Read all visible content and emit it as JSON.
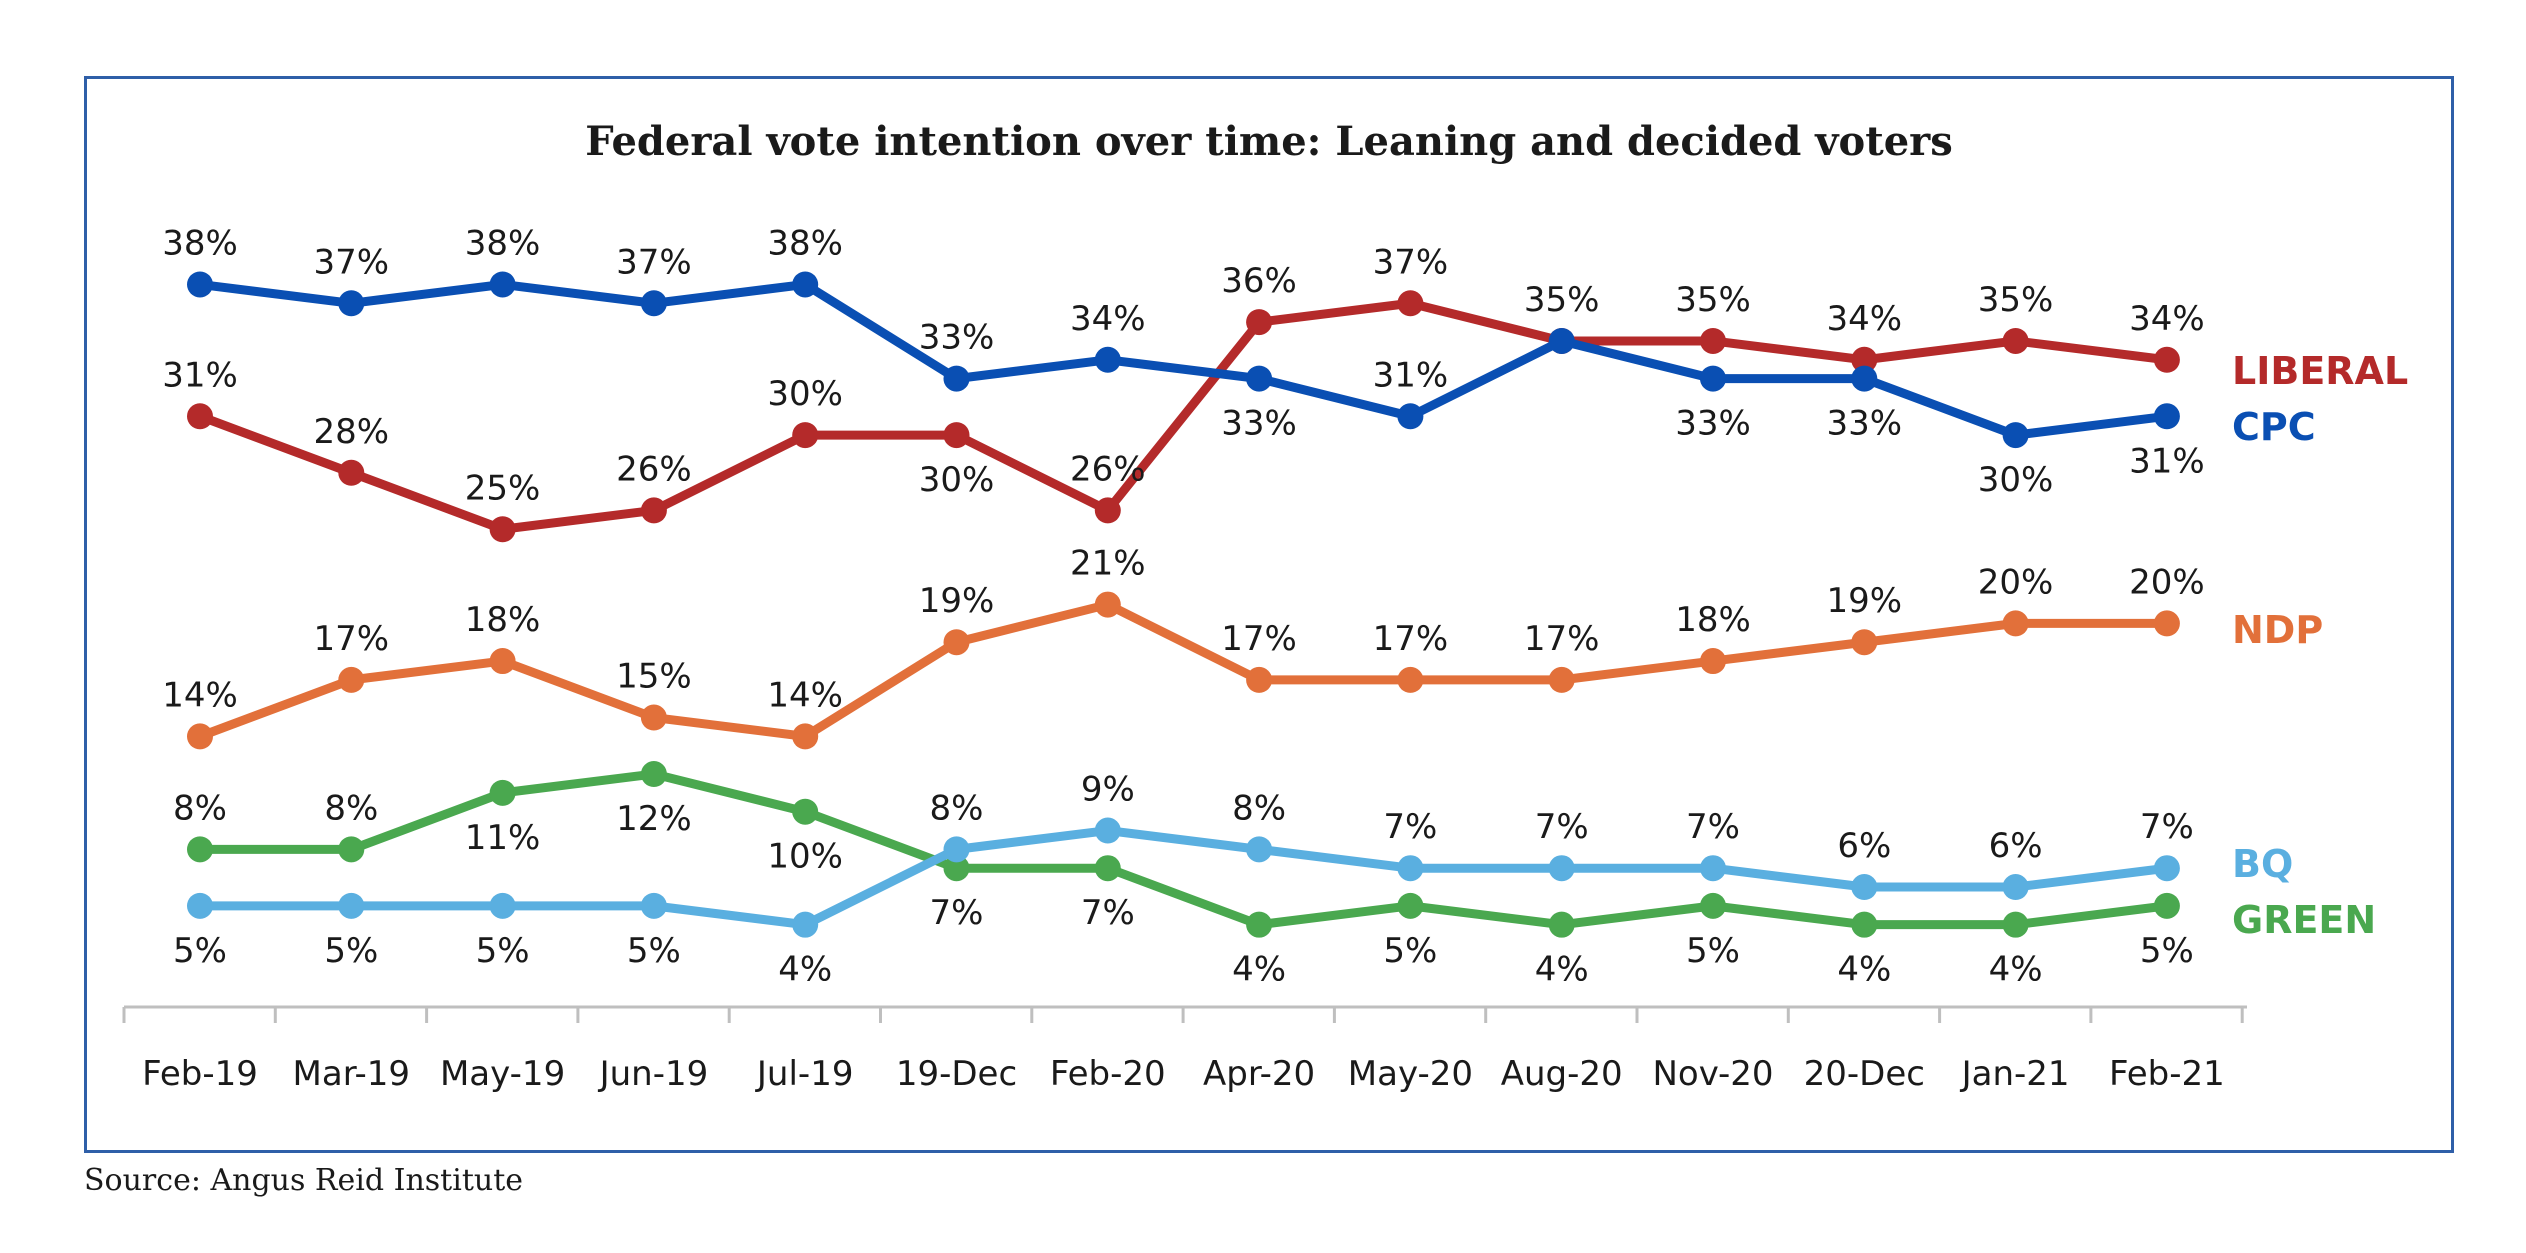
{
  "title": "Federal vote intention over time: Leaning and decided voters",
  "source": "Source: Angus Reid Institute",
  "chart_data": {
    "type": "line",
    "title": "Federal vote intention over time: Leaning and decided voters",
    "xlabel": "",
    "ylabel": "",
    "categories": [
      "Feb-19",
      "Mar-19",
      "May-19",
      "Jun-19",
      "Jul-19",
      "19-Dec",
      "Feb-20",
      "Apr-20",
      "May-20",
      "Aug-20",
      "Nov-20",
      "20-Dec",
      "Jan-21",
      "Feb-21"
    ],
    "ylim": [
      0,
      40
    ],
    "grid": false,
    "legend": "right (labels at line ends)",
    "series": [
      {
        "name": "CPC",
        "color": "#0a4fb3",
        "values": [
          38,
          37,
          38,
          37,
          38,
          33,
          34,
          33,
          31,
          35,
          33,
          33,
          30,
          31
        ],
        "labels": [
          "38%",
          "37%",
          "38%",
          "37%",
          "38%",
          "33%",
          "34%",
          "33%",
          "31%",
          "35%",
          "33%",
          "33%",
          "30%",
          "31%"
        ],
        "label_pos": [
          "above",
          "above",
          "above",
          "above",
          "above",
          "above",
          "above",
          "below",
          "above",
          "above",
          "below",
          "below",
          "below",
          "below"
        ]
      },
      {
        "name": "LIBERAL",
        "color": "#b42a2a",
        "values": [
          31,
          28,
          25,
          26,
          30,
          30,
          26,
          36,
          37,
          35,
          35,
          34,
          35,
          34
        ],
        "labels": [
          "31%",
          "28%",
          "25%",
          "26%",
          "30%",
          "30%",
          "26%",
          "36%",
          "37%",
          "35%",
          "35%",
          "34%",
          "35%",
          "34%"
        ],
        "label_pos": [
          "above",
          "above",
          "above",
          "above",
          "above",
          "below",
          "above",
          "above",
          "above",
          "none",
          "above",
          "above",
          "above",
          "above"
        ]
      },
      {
        "name": "NDP",
        "color": "#e2703a",
        "values": [
          14,
          17,
          18,
          15,
          14,
          19,
          21,
          17,
          17,
          17,
          18,
          19,
          20,
          20
        ],
        "labels": [
          "14%",
          "17%",
          "18%",
          "15%",
          "14%",
          "19%",
          "21%",
          "17%",
          "17%",
          "17%",
          "18%",
          "19%",
          "20%",
          "20%"
        ],
        "label_pos": [
          "above",
          "above",
          "above",
          "above",
          "above",
          "above",
          "above",
          "above",
          "above",
          "above",
          "above",
          "above",
          "above",
          "above"
        ]
      },
      {
        "name": "GREEN",
        "color": "#4aa84f",
        "values": [
          8,
          8,
          11,
          12,
          10,
          7,
          7,
          4,
          5,
          4,
          5,
          4,
          4,
          5
        ],
        "labels": [
          "8%",
          "8%",
          "11%",
          "12%",
          "10%",
          "7%",
          "7%",
          "4%",
          "5%",
          "4%",
          "5%",
          "4%",
          "4%",
          "5%"
        ],
        "label_pos": [
          "above",
          "above",
          "below",
          "below",
          "below",
          "below",
          "below",
          "below",
          "below",
          "below",
          "below",
          "below",
          "below",
          "below"
        ]
      },
      {
        "name": "BQ",
        "color": "#5aafe0",
        "values": [
          5,
          5,
          5,
          5,
          4,
          8,
          9,
          8,
          7,
          7,
          7,
          6,
          6,
          7
        ],
        "labels": [
          "5%",
          "5%",
          "5%",
          "5%",
          "4%",
          "8%",
          "9%",
          "8%",
          "7%",
          "7%",
          "7%",
          "6%",
          "6%",
          "7%"
        ],
        "label_pos": [
          "below",
          "below",
          "below",
          "below",
          "below",
          "above",
          "above",
          "above",
          "above",
          "above",
          "above",
          "above",
          "above",
          "above"
        ]
      }
    ]
  }
}
